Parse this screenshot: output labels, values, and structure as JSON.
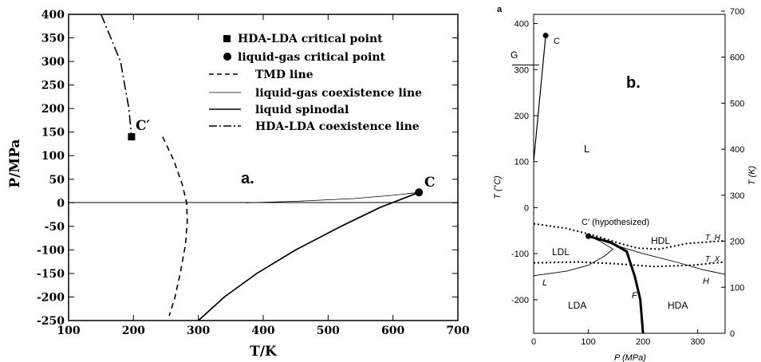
{
  "chart_data": [
    {
      "type": "line",
      "panel_label": "a.",
      "xlabel": "T/K",
      "ylabel": "P/MPa",
      "xlim": [
        100,
        700
      ],
      "ylim": [
        -250,
        400
      ],
      "x_ticks": [
        "100",
        "200",
        "300",
        "400",
        "500",
        "600",
        "700"
      ],
      "y_ticks": [
        "-250",
        "-200",
        "-150",
        "-100",
        "-50",
        "0",
        "50",
        "100",
        "150",
        "200",
        "250",
        "300",
        "350",
        "400"
      ],
      "legend": {
        "placement": "top-right",
        "entries": [
          {
            "marker": "square",
            "label": "HDA-LDA critical point"
          },
          {
            "marker": "circle",
            "label": "liquid-gas critical point"
          },
          {
            "style": "dashed",
            "label": "TMD line"
          },
          {
            "style": "thin-solid",
            "label": "liquid-gas coexistence line"
          },
          {
            "style": "solid",
            "label": "liquid spinodal"
          },
          {
            "style": "dash-dot",
            "label": "HDA-LDA coexistence line"
          }
        ]
      },
      "annotations": [
        "C′",
        "C"
      ],
      "series": [
        {
          "name": "HDA-LDA critical point",
          "points": [
            [
              197,
              140
            ]
          ]
        },
        {
          "name": "liquid-gas critical point",
          "points": [
            [
              640,
              22
            ]
          ]
        },
        {
          "name": "TMD line",
          "points": [
            [
              245,
              140
            ],
            [
              262,
              90
            ],
            [
              275,
              40
            ],
            [
              282,
              0
            ],
            [
              283,
              -40
            ],
            [
              280,
              -90
            ],
            [
              272,
              -150
            ],
            [
              264,
              -200
            ],
            [
              255,
              -240
            ]
          ]
        },
        {
          "name": "liquid-gas coexistence line",
          "points": [
            [
              373,
              0
            ],
            [
              450,
              3
            ],
            [
              540,
              9
            ],
            [
              600,
              16
            ],
            [
              640,
              22
            ]
          ]
        },
        {
          "name": "liquid spinodal",
          "points": [
            [
              300,
              -250
            ],
            [
              340,
              -200
            ],
            [
              390,
              -150
            ],
            [
              450,
              -100
            ],
            [
              520,
              -50
            ],
            [
              580,
              -10
            ],
            [
              640,
              22
            ]
          ]
        },
        {
          "name": "HDA-LDA coexistence line",
          "points": [
            [
              150,
              400
            ],
            [
              165,
              350
            ],
            [
              180,
              300
            ],
            [
              193,
              200
            ],
            [
              197,
              140
            ]
          ]
        }
      ]
    },
    {
      "type": "line",
      "panel_label": "b.",
      "corner_label": "a",
      "xlabel": "P (MPa)",
      "ylabel": "T (°C)",
      "y2label": "T (K)",
      "xlim": [
        0,
        350
      ],
      "ylim": [
        -273,
        420
      ],
      "x_ticks": [
        "0",
        "100",
        "200",
        "300"
      ],
      "y_ticks": [
        "-200",
        "-100",
        "0",
        "100",
        "200",
        "300",
        "400"
      ],
      "y2_ticks": [
        "0",
        "100",
        "200",
        "300",
        "400",
        "500",
        "600",
        "700"
      ],
      "region_labels": [
        "L",
        "LDL",
        "HDL",
        "LDA",
        "HDA",
        "G"
      ],
      "line_labels": [
        "C",
        "C′ (hypothesized)",
        "L",
        "F",
        "H",
        "T_H",
        "T_X"
      ],
      "series": [
        {
          "name": "liquid-gas coexistence",
          "points": [
            [
              0,
              100
            ],
            [
              22,
              374
            ]
          ]
        },
        {
          "name": "T_H",
          "points": [
            [
              0,
              -35
            ],
            [
              60,
              -45
            ],
            [
              110,
              -60
            ],
            [
              150,
              -75
            ],
            [
              190,
              -88
            ],
            [
              230,
              -90
            ],
            [
              280,
              -78
            ],
            [
              350,
              -72
            ]
          ]
        },
        {
          "name": "T_X",
          "points": [
            [
              0,
              -120
            ],
            [
              80,
              -118
            ],
            [
              150,
              -122
            ],
            [
              220,
              -128
            ],
            [
              290,
              -125
            ],
            [
              350,
              -118
            ]
          ]
        },
        {
          "name": "LDL-HDL coexistence",
          "points": [
            [
              100,
              -62
            ],
            [
              140,
              -75
            ],
            [
              170,
              -95
            ],
            [
              185,
              -150
            ],
            [
              195,
              -200
            ],
            [
              200,
              -273
            ]
          ]
        },
        {
          "name": "L",
          "points": [
            [
              0,
              -148
            ],
            [
              60,
              -138
            ],
            [
              100,
              -125
            ],
            [
              130,
              -105
            ],
            [
              145,
              -90
            ],
            [
              120,
              -72
            ],
            [
              100,
              -62
            ]
          ]
        },
        {
          "name": "H",
          "points": [
            [
              100,
              -62
            ],
            [
              150,
              -82
            ],
            [
              200,
              -100
            ],
            [
              260,
              -118
            ],
            [
              310,
              -135
            ],
            [
              350,
              -145
            ]
          ]
        }
      ],
      "points": [
        {
          "label": "C",
          "P": 22,
          "T": 374
        },
        {
          "label": "C′ (hypothesized)",
          "P": 100,
          "T": -62
        }
      ]
    }
  ]
}
